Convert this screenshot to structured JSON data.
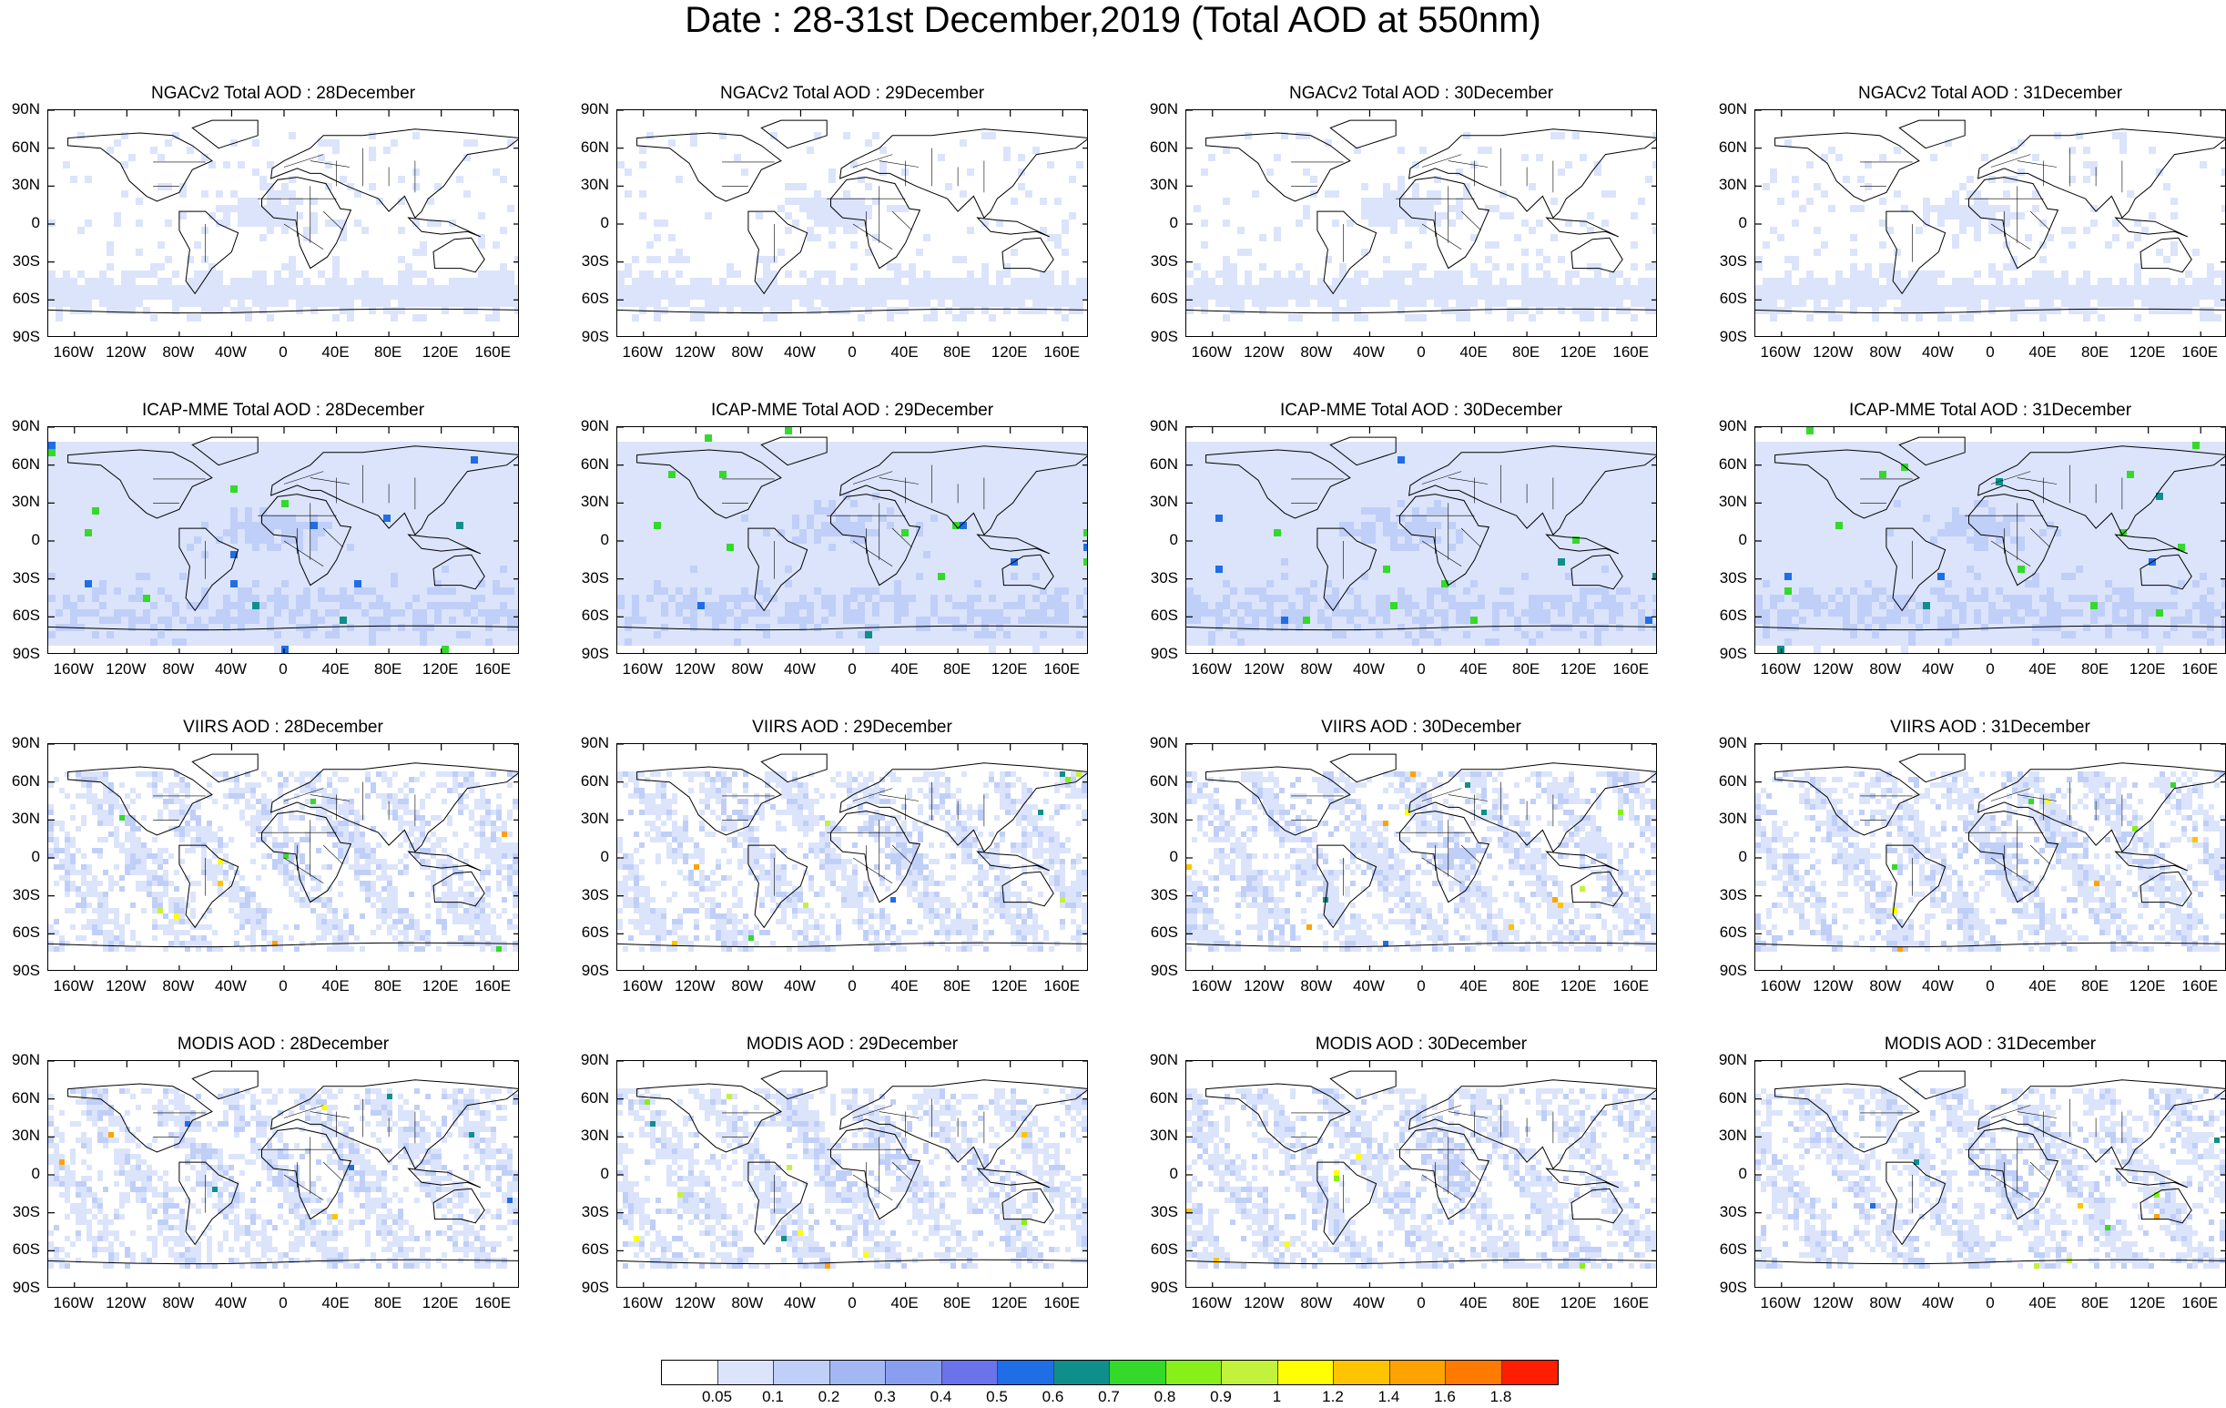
{
  "title": "Date : 28-31st December,2019 (Total AOD at 550nm)",
  "lat_labels": [
    "90N",
    "60N",
    "30N",
    "0",
    "30S",
    "60S",
    "90S"
  ],
  "lon_labels": [
    "160W",
    "120W",
    "80W",
    "40W",
    "0",
    "40E",
    "80E",
    "120E",
    "160E"
  ],
  "rows": [
    {
      "product": "NGACv2",
      "panels": [
        {
          "title": "NGACv2 Total AOD : 28December"
        },
        {
          "title": "NGACv2 Total AOD : 29December"
        },
        {
          "title": "NGACv2 Total AOD : 30December"
        },
        {
          "title": "NGACv2 Total AOD : 31December"
        }
      ]
    },
    {
      "product": "ICAP-MME",
      "panels": [
        {
          "title": "ICAP-MME Total AOD : 28December"
        },
        {
          "title": "ICAP-MME Total AOD : 29December"
        },
        {
          "title": "ICAP-MME Total AOD : 30December"
        },
        {
          "title": "ICAP-MME Total AOD : 31December"
        }
      ]
    },
    {
      "product": "VIIRS",
      "panels": [
        {
          "title": "VIIRS AOD : 28December"
        },
        {
          "title": "VIIRS AOD : 29December"
        },
        {
          "title": "VIIRS AOD : 30December"
        },
        {
          "title": "VIIRS AOD : 31December"
        }
      ]
    },
    {
      "product": "MODIS",
      "panels": [
        {
          "title": "MODIS AOD : 28December"
        },
        {
          "title": "MODIS AOD : 29December"
        },
        {
          "title": "MODIS AOD : 30December"
        },
        {
          "title": "MODIS AOD : 31December"
        }
      ]
    }
  ],
  "colorbar": {
    "labels": [
      "0.05",
      "0.1",
      "0.2",
      "0.3",
      "0.4",
      "0.5",
      "0.6",
      "0.7",
      "0.8",
      "0.9",
      "1",
      "1.2",
      "1.4",
      "1.6",
      "1.8"
    ],
    "colors": [
      "#ffffff",
      "#dbe4fb",
      "#c0cff8",
      "#a3b7f4",
      "#8a9ef0",
      "#6a73ea",
      "#1f6ee6",
      "#0e8f8c",
      "#35d92a",
      "#86f018",
      "#c3f23c",
      "#ffff00",
      "#ffc400",
      "#ffa300",
      "#ff7a00",
      "#ff1f00"
    ]
  }
}
